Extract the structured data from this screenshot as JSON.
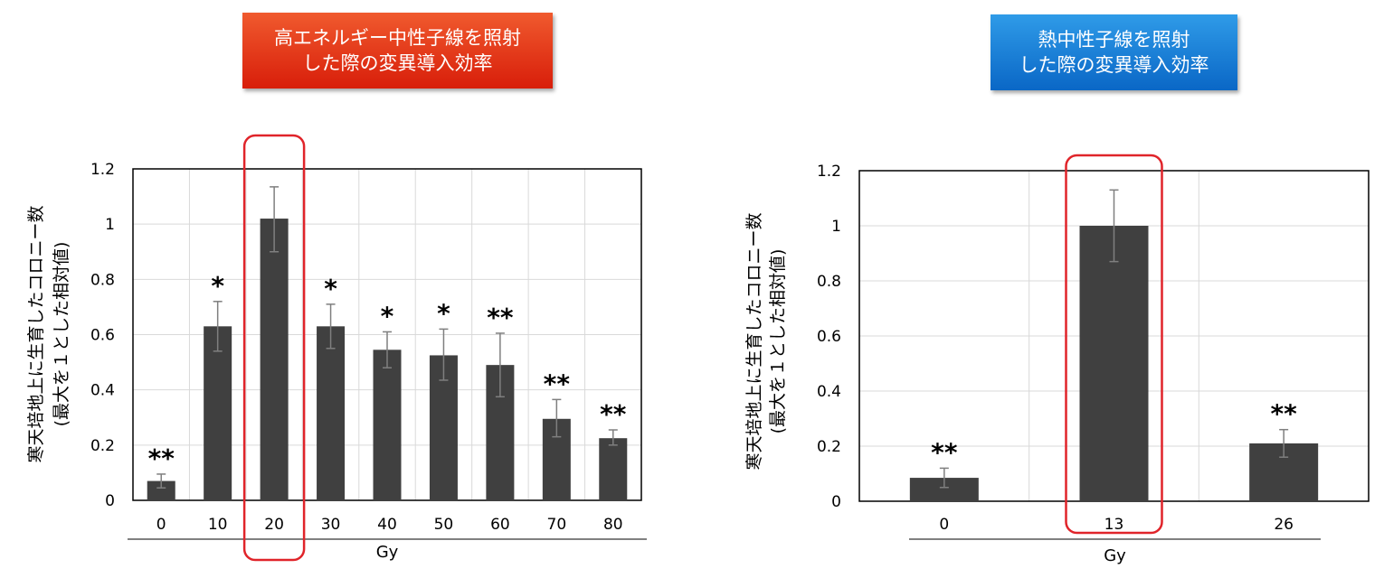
{
  "colors": {
    "bar": "#404040",
    "highlight": "#e0242a",
    "grid": "#d9d9d9",
    "axis": "#000000",
    "banner_left": "#e0321a",
    "banner_right": "#1a7fd6"
  },
  "banners": [
    {
      "lines": [
        "高エネルギー中性子線を照射",
        "した際の変異導入効率"
      ]
    },
    {
      "lines": [
        "熱中性子線を照射",
        "した際の変異導入効率"
      ]
    }
  ],
  "chart_data": [
    {
      "type": "bar",
      "categories": [
        "0",
        "10",
        "20",
        "30",
        "40",
        "50",
        "60",
        "70",
        "80"
      ],
      "values": [
        0.07,
        0.63,
        1.02,
        0.63,
        0.545,
        0.525,
        0.49,
        0.295,
        0.225
      ],
      "error_low": [
        0.045,
        0.54,
        0.9,
        0.55,
        0.48,
        0.435,
        0.375,
        0.23,
        0.2
      ],
      "error_high": [
        0.095,
        0.72,
        1.135,
        0.71,
        0.61,
        0.62,
        0.605,
        0.365,
        0.255
      ],
      "significance": [
        "**",
        "*",
        "",
        "*",
        "*",
        "*",
        "**",
        "**",
        "**"
      ],
      "highlight_category": "20",
      "xlabel": "Gy",
      "ylabel_lines": [
        "寒天培地上に生育したコロニー数",
        "(最大を１とした相対値)"
      ],
      "ylim": [
        0,
        1.2
      ],
      "yticks": [
        "0",
        "0.2",
        "0.4",
        "0.6",
        "0.8",
        "1",
        "1.2"
      ],
      "grid": true
    },
    {
      "type": "bar",
      "categories": [
        "0",
        "13",
        "26"
      ],
      "values": [
        0.085,
        1.0,
        0.21
      ],
      "error_low": [
        0.05,
        0.87,
        0.16
      ],
      "error_high": [
        0.12,
        1.13,
        0.26
      ],
      "significance": [
        "**",
        "",
        "**"
      ],
      "highlight_category": "13",
      "xlabel": "Gy",
      "ylabel_lines": [
        "寒天培地上に生育したコロニー数",
        "(最大を１とした相対値)"
      ],
      "ylim": [
        0,
        1.2
      ],
      "yticks": [
        "0",
        "0.2",
        "0.4",
        "0.6",
        "0.8",
        "1",
        "1.2"
      ],
      "grid": true
    }
  ]
}
